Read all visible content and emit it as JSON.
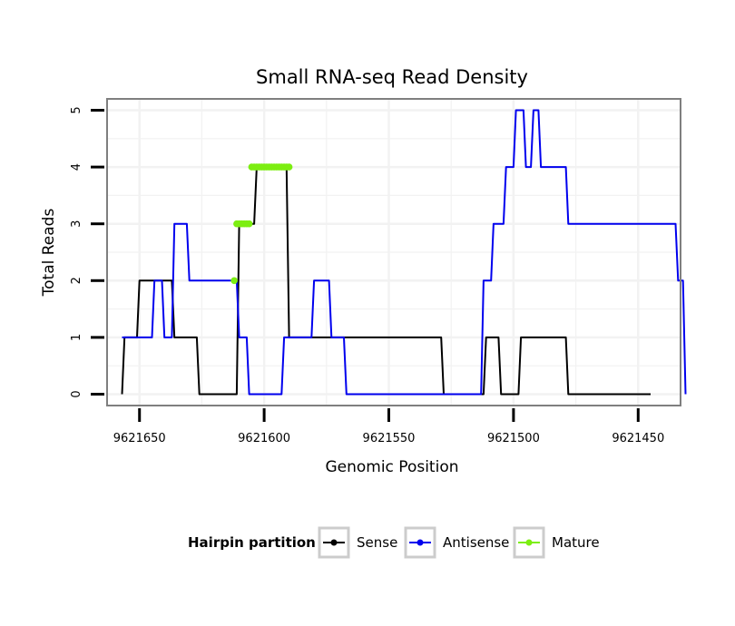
{
  "chart_data": {
    "type": "line",
    "title": "Small RNA-seq Read Density",
    "xlabel": "Genomic Position",
    "ylabel": "Total Reads",
    "xlim": [
      9621663,
      9621433
    ],
    "ylim": [
      -0.2,
      5.2
    ],
    "x_reversed": true,
    "x_ticks": [
      9621650,
      9621600,
      9621550,
      9621500,
      9621450
    ],
    "x_tick_labels": [
      "9621650",
      "9621600",
      "9621550",
      "9621500",
      "9621450"
    ],
    "y_ticks": [
      0,
      1,
      2,
      3,
      4,
      5
    ],
    "y_tick_labels": [
      "0",
      "1",
      "2",
      "3",
      "4",
      "5"
    ],
    "grid": true,
    "legend_position": "bottom",
    "legend": {
      "title": "Hairpin partition",
      "entries": [
        "Sense",
        "Antisense",
        "Mature"
      ]
    },
    "colors": {
      "Sense": "#000000",
      "Antisense": "#0000ee",
      "Mature": "#7cee11",
      "panel_border": "#7f7f7f",
      "grid": "#f2f2f2"
    },
    "series": [
      {
        "name": "Sense",
        "x": [
          9621657,
          9621656,
          9621651,
          9621650,
          9621648,
          9621637,
          9621636,
          9621632,
          9621631,
          9621627,
          9621626,
          9621612,
          9621611,
          9621610,
          9621604,
          9621603,
          9621591,
          9621590,
          9621580,
          9621579,
          9621529,
          9621528,
          9621512,
          9621511,
          9621506,
          9621505,
          9621498,
          9621497,
          9621479,
          9621478,
          9621452,
          9621451,
          9621445
        ],
        "y": [
          0,
          1,
          1,
          2,
          2,
          2,
          1,
          1,
          1,
          1,
          0,
          0,
          0,
          3,
          3,
          4,
          4,
          1,
          1,
          1,
          1,
          0,
          0,
          1,
          1,
          0,
          0,
          1,
          1,
          0,
          0,
          0,
          0
        ]
      },
      {
        "name": "Antisense",
        "x": [
          9621657,
          9621645,
          9621644,
          9621641,
          9621640,
          9621637,
          9621636,
          9621631,
          9621630,
          9621627,
          9621626,
          9621611,
          9621610,
          9621607,
          9621606,
          9621593,
          9621592,
          9621581,
          9621580,
          9621574,
          9621573,
          9621568,
          9621567,
          9621548,
          9621547,
          9621516,
          9621515,
          9621513,
          9621512,
          9621509,
          9621508,
          9621504,
          9621503,
          9621500,
          9621499,
          9621496,
          9621495,
          9621493,
          9621492,
          9621490,
          9621489,
          9621479,
          9621478,
          9621463,
          9621462,
          9621460,
          9621459,
          9621457,
          9621456,
          9621452,
          9621451,
          9621447,
          9621446,
          9621436,
          9621435,
          9621434,
          9621433,
          9621432,
          9621431
        ],
        "y": [
          1,
          1,
          2,
          2,
          1,
          1,
          3,
          3,
          2,
          2,
          2,
          2,
          1,
          1,
          0,
          0,
          1,
          1,
          2,
          2,
          1,
          1,
          0,
          0,
          0,
          0,
          0,
          0,
          2,
          2,
          3,
          3,
          4,
          4,
          5,
          5,
          4,
          4,
          5,
          5,
          4,
          4,
          3,
          3,
          3,
          3,
          3,
          3,
          3,
          3,
          3,
          3,
          3,
          3,
          3,
          2,
          2,
          2,
          0
        ]
      },
      {
        "name": "Mature",
        "x": [
          9621612,
          9621611,
          9621610,
          9621609,
          9621608,
          9621607,
          9621606,
          9621605,
          9621604,
          9621603,
          9621602,
          9621601,
          9621600,
          9621599,
          9621598,
          9621597,
          9621596,
          9621595,
          9621594,
          9621593,
          9621592,
          9621591,
          9621590
        ],
        "y": [
          2,
          3,
          3,
          3,
          3,
          3,
          3,
          4,
          4,
          4,
          4,
          4,
          4,
          4,
          4,
          4,
          4,
          4,
          4,
          4,
          4,
          4,
          4
        ]
      }
    ]
  }
}
